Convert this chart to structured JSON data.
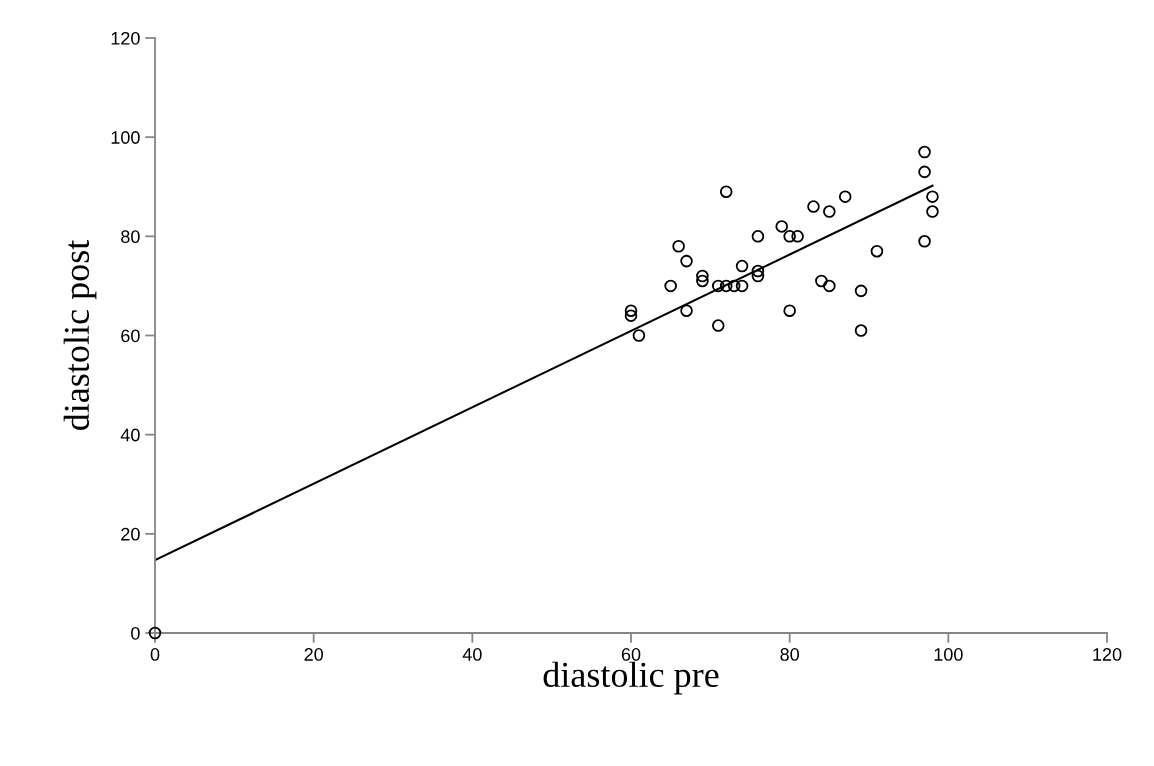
{
  "chart_data": {
    "type": "scatter",
    "xlabel": "diastolic pre",
    "ylabel": "diastolic post",
    "xlim": [
      0,
      120
    ],
    "ylim": [
      0,
      120
    ],
    "xticks": [
      0,
      20,
      40,
      60,
      80,
      100,
      120
    ],
    "yticks": [
      0,
      20,
      40,
      60,
      80,
      100,
      120
    ],
    "grid": false,
    "legend": false,
    "marker": "circle",
    "series": [
      {
        "color": "#000000",
        "x": [
          0,
          60,
          60,
          61,
          65,
          66,
          67,
          67,
          69,
          69,
          71,
          71,
          72,
          72,
          73,
          74,
          74,
          76,
          76,
          76,
          79,
          80,
          81,
          80,
          83,
          84,
          85,
          85,
          87,
          89,
          89,
          91,
          97,
          97,
          97,
          98,
          98
        ],
        "values": [
          0,
          65,
          64,
          60,
          70,
          78,
          75,
          65,
          72,
          71,
          70,
          62,
          89,
          70,
          70,
          70,
          74,
          80,
          73,
          72,
          82,
          80,
          80,
          65,
          86,
          71,
          70,
          85,
          88,
          69,
          61,
          77,
          97,
          93,
          79,
          88,
          85
        ]
      },
      {
        "type": "line",
        "color": "#000000",
        "line_style": "solid",
        "marker": "none",
        "x": [
          0,
          98
        ],
        "values": [
          14.7,
          90.2
        ]
      }
    ]
  }
}
